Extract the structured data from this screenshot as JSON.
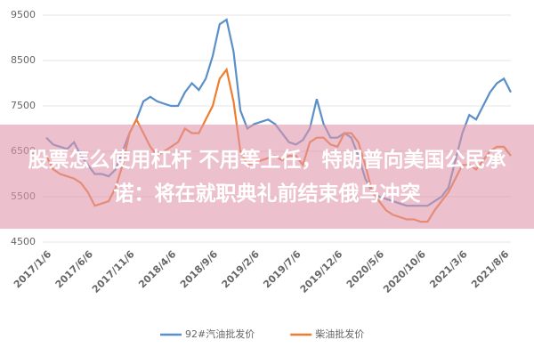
{
  "chart_data": {
    "type": "line",
    "categories": [
      "2017/1/6",
      null,
      null,
      null,
      null,
      null,
      "2017/6/6",
      null,
      null,
      null,
      null,
      null,
      "2017/11/6",
      null,
      null,
      null,
      null,
      null,
      "2018/4/6",
      null,
      null,
      null,
      null,
      null,
      "2018/9/6",
      null,
      null,
      null,
      null,
      null,
      "2019/2/6",
      null,
      null,
      null,
      null,
      null,
      "2019/7/6",
      null,
      null,
      null,
      null,
      null,
      "2019/12/6",
      null,
      null,
      null,
      null,
      null,
      "2020/5/6",
      null,
      null,
      null,
      null,
      null,
      "2020/10/6",
      null,
      null,
      null,
      null,
      null,
      "2021/3/6",
      null,
      null,
      null,
      null,
      null,
      "2021/8/6",
      null
    ],
    "series": [
      {
        "name": "92#汽油批发价",
        "color": "#5b8fc9",
        "values": [
          6800,
          6650,
          6600,
          6550,
          6700,
          6400,
          6200,
          6000,
          6000,
          5950,
          6100,
          6500,
          6900,
          7200,
          7600,
          7700,
          7600,
          7550,
          7500,
          7500,
          7800,
          8000,
          7850,
          8100,
          8600,
          9300,
          9400,
          8700,
          7400,
          7000,
          7100,
          7150,
          7200,
          7100,
          6900,
          6700,
          6650,
          6750,
          7000,
          7650,
          7100,
          6800,
          6800,
          6900,
          6800,
          6400,
          5900,
          5600,
          5500,
          5450,
          5400,
          5350,
          5300,
          5300,
          5300,
          5300,
          5400,
          5500,
          5700,
          6300,
          6900,
          7300,
          7200,
          7500,
          7800,
          8000,
          8100,
          7800
        ]
      },
      {
        "name": "柴油批发价",
        "color": "#ed7d31",
        "values": [
          6400,
          6100,
          6000,
          5950,
          5900,
          5800,
          5600,
          5300,
          5350,
          5400,
          5700,
          6200,
          6900,
          7200,
          6900,
          6600,
          6400,
          6500,
          6600,
          6700,
          7000,
          6900,
          6900,
          7200,
          7500,
          8100,
          8300,
          7600,
          6500,
          6200,
          6250,
          6300,
          6350,
          6400,
          6300,
          6400,
          6400,
          6200,
          6700,
          6800,
          6800,
          6650,
          6600,
          6900,
          6900,
          6700,
          6200,
          5600,
          5400,
          5200,
          5100,
          5050,
          5000,
          5000,
          4950,
          4950,
          5200,
          5400,
          5600,
          5900,
          6200,
          6200,
          6100,
          6300,
          6500,
          6600,
          6600,
          6400
        ]
      }
    ],
    "ylim": [
      4500,
      9500
    ],
    "yticks": [
      4500,
      5500,
      6500,
      7500,
      8500,
      9500
    ],
    "grid": true,
    "annotation": "股票怎么使用杠杆 不用等上任，特朗普向美国公民承诺：将在就职典礼前结束俄乌冲突"
  }
}
